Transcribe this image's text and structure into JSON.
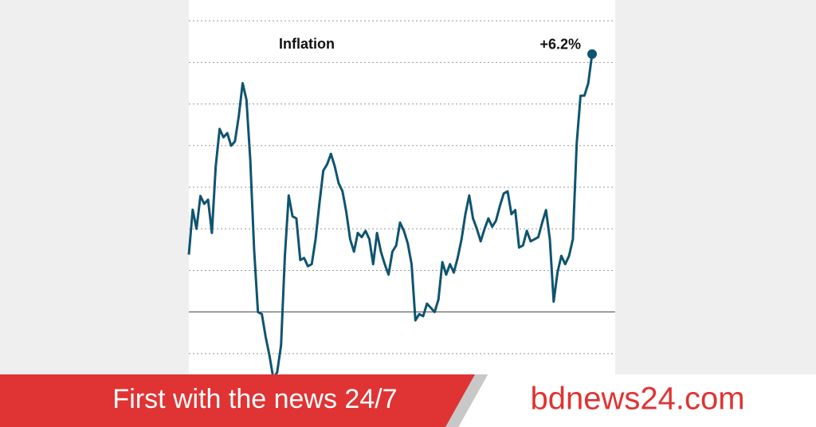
{
  "chart_data": {
    "type": "line",
    "annotation": "Inflation",
    "color": "#0f5470",
    "values": [
      1.38,
      2.46,
      2.0,
      2.79,
      2.6,
      2.7,
      1.9,
      3.5,
      4.4,
      4.2,
      4.3,
      4.0,
      4.1,
      4.7,
      5.5,
      5.1,
      3.65,
      1.5,
      0,
      -0.05,
      -0.6,
      -1.05,
      -1.6,
      -1.45,
      -0.8,
      1.35,
      2.8,
      2.3,
      2.25,
      1.25,
      1.3,
      1.1,
      1.15,
      1.75,
      2.6,
      3.4,
      3.55,
      3.8,
      3.5,
      3.1,
      2.9,
      2.4,
      1.75,
      1.45,
      1.9,
      1.8,
      1.95,
      1.75,
      1.15,
      1.9,
      1.45,
      1.15,
      0.9,
      1.45,
      1.6,
      2.15,
      1.95,
      1.65,
      1.15,
      -0.2,
      -0.05,
      -0.1,
      0.2,
      0.1,
      0,
      0.3,
      1.2,
      0.9,
      1.15,
      0.95,
      1.3,
      1.75,
      2.35,
      2.8,
      2.25,
      2.0,
      1.7,
      2.0,
      2.25,
      2.05,
      2.2,
      2.55,
      2.85,
      2.9,
      2.35,
      2.45,
      1.55,
      1.6,
      1.95,
      1.7,
      1.75,
      1.8,
      2.15,
      2.45,
      1.75,
      0.25,
      0.95,
      1.35,
      1.15,
      1.35,
      1.75,
      4.05,
      5.2,
      5.2,
      5.5,
      6.2
    ],
    "value_labels": [
      null,
      null,
      null,
      null,
      null,
      null,
      null,
      null,
      null,
      null,
      null,
      null,
      null,
      null,
      null,
      null,
      null,
      null,
      null,
      null,
      null,
      null,
      null,
      null,
      null,
      null,
      null,
      null,
      null,
      null,
      null,
      null,
      null,
      null,
      null,
      null,
      null,
      null,
      null,
      null,
      null,
      null,
      null,
      null,
      null,
      null,
      null,
      null,
      null,
      null,
      null,
      null,
      null,
      null,
      null,
      null,
      null,
      null,
      null,
      null,
      null,
      null,
      null,
      null,
      null,
      null,
      null,
      null,
      null,
      null,
      null,
      null,
      null,
      null,
      null,
      null,
      null,
      null,
      null,
      null,
      null,
      null,
      null,
      null,
      null,
      null,
      null,
      null,
      null,
      null,
      null,
      null,
      null,
      null,
      null,
      null,
      null,
      null,
      null,
      null,
      null,
      null,
      null,
      null,
      null,
      "+6.2%"
    ],
    "ylim": [
      -1.5,
      7.5
    ],
    "yticks": [
      -1,
      0,
      1,
      2,
      3,
      4,
      5,
      6,
      7
    ],
    "grid": true
  },
  "banner": {
    "tagline": "First with the news 24/7",
    "brand": "bdnews24.com"
  }
}
